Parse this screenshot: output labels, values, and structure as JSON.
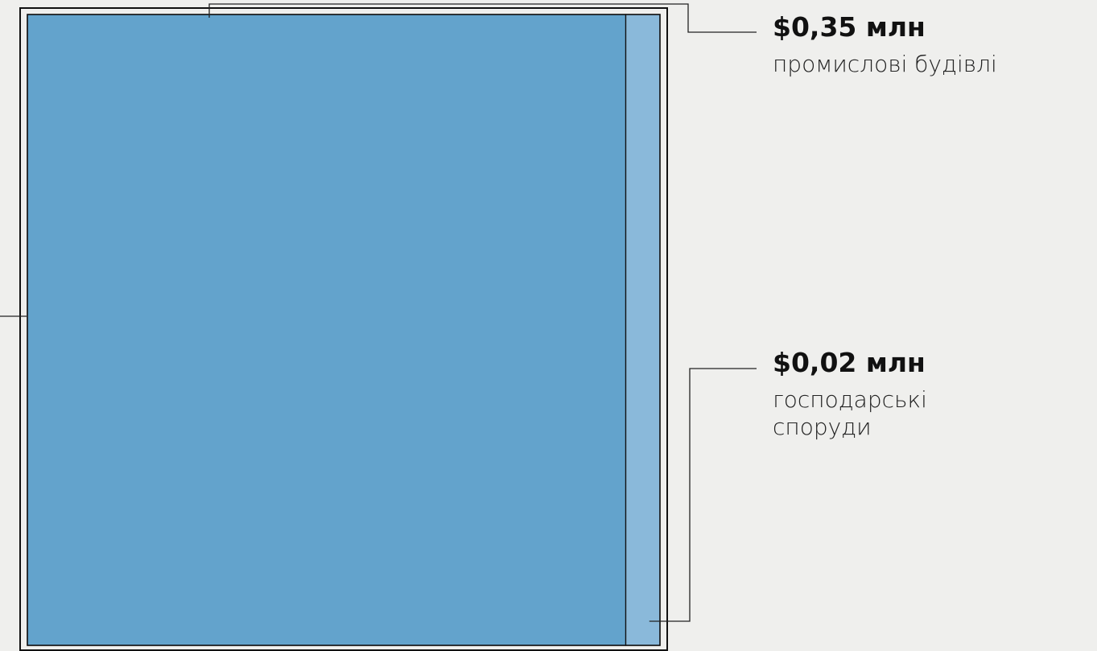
{
  "chart_data": {
    "type": "treemap",
    "categories": [
      [
        "промислові будівлі"
      ],
      [
        "господарські",
        "споруди"
      ]
    ],
    "values": [
      0.35,
      0.02
    ],
    "value_labels": [
      "$0,35 млн",
      "$0,02 млн"
    ],
    "colors": [
      "#63a3cc",
      "#8ab9da"
    ]
  }
}
